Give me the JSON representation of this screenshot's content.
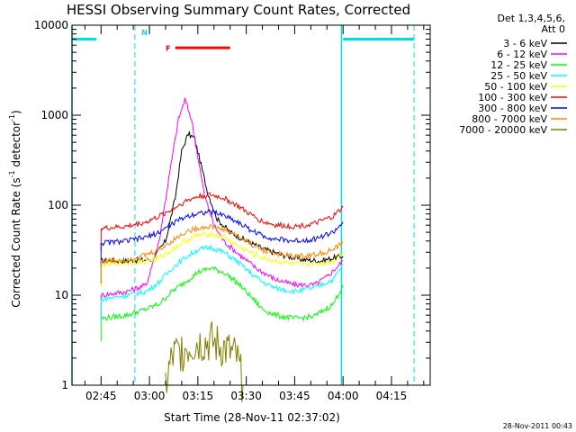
{
  "chart_data": {
    "type": "line",
    "title": "HESSI Observing Summary Count Rates, Corrected",
    "xlabel": "Start Time (28-Nov-11 02:37:02)",
    "ylabel_main": "Corrected Count Rate (s",
    "ylabel_sup1": "-1",
    "ylabel_mid": " detector",
    "ylabel_sup2": "-1",
    "ylabel_end": ")",
    "y_scale": "log",
    "ylim": [
      1,
      10000
    ],
    "xlim_minutes": [
      -9,
      102
    ],
    "x_ticks": [
      {
        "label": "02:45",
        "min": 0
      },
      {
        "label": "03:00",
        "min": 15
      },
      {
        "label": "03:15",
        "min": 30
      },
      {
        "label": "03:30",
        "min": 45
      },
      {
        "label": "03:45",
        "min": 60
      },
      {
        "label": "04:00",
        "min": 75
      },
      {
        "label": "04:15",
        "min": 90
      }
    ],
    "y_ticks": [
      {
        "label": "1",
        "value": 1
      },
      {
        "label": "10",
        "value": 10
      },
      {
        "label": "100",
        "value": 100
      },
      {
        "label": "1000",
        "value": 1000
      },
      {
        "label": "10000",
        "value": 10000
      }
    ],
    "legend_header": [
      "Det 1,3,4,5,6,",
      "Att 0"
    ],
    "legend_position": "right",
    "series": [
      {
        "name": "3 - 6 keV",
        "color": "#000000",
        "points": [
          [
            0,
            24
          ],
          [
            8,
            24
          ],
          [
            16,
            25
          ],
          [
            20,
            40
          ],
          [
            23,
            120
          ],
          [
            25,
            400
          ],
          [
            27,
            620
          ],
          [
            29,
            550
          ],
          [
            31,
            280
          ],
          [
            33,
            140
          ],
          [
            36,
            70
          ],
          [
            40,
            50
          ],
          [
            44,
            42
          ],
          [
            50,
            33
          ],
          [
            56,
            28
          ],
          [
            62,
            25
          ],
          [
            68,
            24
          ],
          [
            72,
            26
          ],
          [
            75,
            27
          ]
        ]
      },
      {
        "name": "6 - 12 keV",
        "color": "#ff00ff",
        "points": [
          [
            0,
            10
          ],
          [
            8,
            11
          ],
          [
            14,
            13
          ],
          [
            18,
            40
          ],
          [
            21,
            200
          ],
          [
            24,
            900
          ],
          [
            26,
            1500
          ],
          [
            28,
            900
          ],
          [
            30,
            350
          ],
          [
            32,
            130
          ],
          [
            35,
            60
          ],
          [
            38,
            40
          ],
          [
            42,
            30
          ],
          [
            48,
            20
          ],
          [
            54,
            15
          ],
          [
            60,
            13
          ],
          [
            66,
            13
          ],
          [
            70,
            16
          ],
          [
            75,
            24
          ]
        ]
      },
      {
        "name": "12 - 25 keV",
        "color": "#00ff00",
        "points": [
          [
            0,
            5.5
          ],
          [
            8,
            6
          ],
          [
            14,
            7
          ],
          [
            18,
            8
          ],
          [
            22,
            11
          ],
          [
            26,
            14
          ],
          [
            30,
            18
          ],
          [
            34,
            20
          ],
          [
            38,
            18
          ],
          [
            42,
            14
          ],
          [
            46,
            10
          ],
          [
            50,
            7
          ],
          [
            54,
            6
          ],
          [
            60,
            5.5
          ],
          [
            66,
            5.8
          ],
          [
            72,
            8
          ],
          [
            75,
            13
          ]
        ]
      },
      {
        "name": "25 - 50 keV",
        "color": "#00ffff",
        "points": [
          [
            0,
            9
          ],
          [
            8,
            10
          ],
          [
            14,
            11
          ],
          [
            18,
            14
          ],
          [
            22,
            20
          ],
          [
            26,
            26
          ],
          [
            30,
            32
          ],
          [
            34,
            34
          ],
          [
            38,
            30
          ],
          [
            42,
            24
          ],
          [
            46,
            18
          ],
          [
            50,
            14
          ],
          [
            54,
            12
          ],
          [
            60,
            11
          ],
          [
            66,
            12
          ],
          [
            72,
            15
          ],
          [
            75,
            22
          ]
        ]
      },
      {
        "name": "50 - 100 keV",
        "color": "#ffff00",
        "points": [
          [
            0,
            22
          ],
          [
            8,
            23
          ],
          [
            14,
            24
          ],
          [
            18,
            26
          ],
          [
            22,
            32
          ],
          [
            26,
            40
          ],
          [
            30,
            46
          ],
          [
            34,
            48
          ],
          [
            38,
            44
          ],
          [
            42,
            36
          ],
          [
            46,
            30
          ],
          [
            50,
            26
          ],
          [
            54,
            24
          ],
          [
            60,
            22
          ],
          [
            66,
            22
          ],
          [
            72,
            24
          ],
          [
            75,
            30
          ]
        ]
      },
      {
        "name": "100 - 300 keV",
        "color": "#ff0000",
        "points": [
          [
            0,
            55
          ],
          [
            8,
            58
          ],
          [
            14,
            65
          ],
          [
            18,
            75
          ],
          [
            22,
            90
          ],
          [
            26,
            110
          ],
          [
            30,
            125
          ],
          [
            34,
            130
          ],
          [
            38,
            120
          ],
          [
            42,
            100
          ],
          [
            46,
            80
          ],
          [
            50,
            66
          ],
          [
            54,
            60
          ],
          [
            60,
            58
          ],
          [
            66,
            62
          ],
          [
            72,
            75
          ],
          [
            75,
            95
          ]
        ]
      },
      {
        "name": "300 - 800 keV",
        "color": "#0000ff",
        "points": [
          [
            0,
            38
          ],
          [
            8,
            40
          ],
          [
            14,
            44
          ],
          [
            18,
            50
          ],
          [
            22,
            62
          ],
          [
            26,
            74
          ],
          [
            30,
            82
          ],
          [
            34,
            84
          ],
          [
            38,
            78
          ],
          [
            42,
            66
          ],
          [
            46,
            54
          ],
          [
            50,
            46
          ],
          [
            54,
            42
          ],
          [
            60,
            40
          ],
          [
            66,
            42
          ],
          [
            72,
            50
          ],
          [
            75,
            65
          ]
        ]
      },
      {
        "name": "800 - 7000 keV",
        "color": "#ff8800",
        "points": [
          [
            0,
            24
          ],
          [
            8,
            25
          ],
          [
            14,
            28
          ],
          [
            18,
            32
          ],
          [
            22,
            40
          ],
          [
            26,
            50
          ],
          [
            30,
            56
          ],
          [
            34,
            58
          ],
          [
            38,
            54
          ],
          [
            42,
            46
          ],
          [
            46,
            38
          ],
          [
            50,
            32
          ],
          [
            54,
            29
          ],
          [
            60,
            27
          ],
          [
            66,
            28
          ],
          [
            72,
            32
          ],
          [
            75,
            38
          ]
        ]
      },
      {
        "name": "7000 - 20000 keV",
        "color": "#808000",
        "points": [
          [
            20,
            1
          ],
          [
            22,
            2
          ],
          [
            26,
            2.6
          ],
          [
            30,
            3
          ],
          [
            34,
            3
          ],
          [
            38,
            2.6
          ],
          [
            42,
            2
          ],
          [
            44,
            1
          ]
        ]
      }
    ],
    "flags": [
      {
        "label": "N",
        "color": "#00e0e0"
      },
      {
        "label": "F",
        "color": "#ff0000"
      }
    ],
    "timestamp": "28-Nov-2011 00:43"
  }
}
